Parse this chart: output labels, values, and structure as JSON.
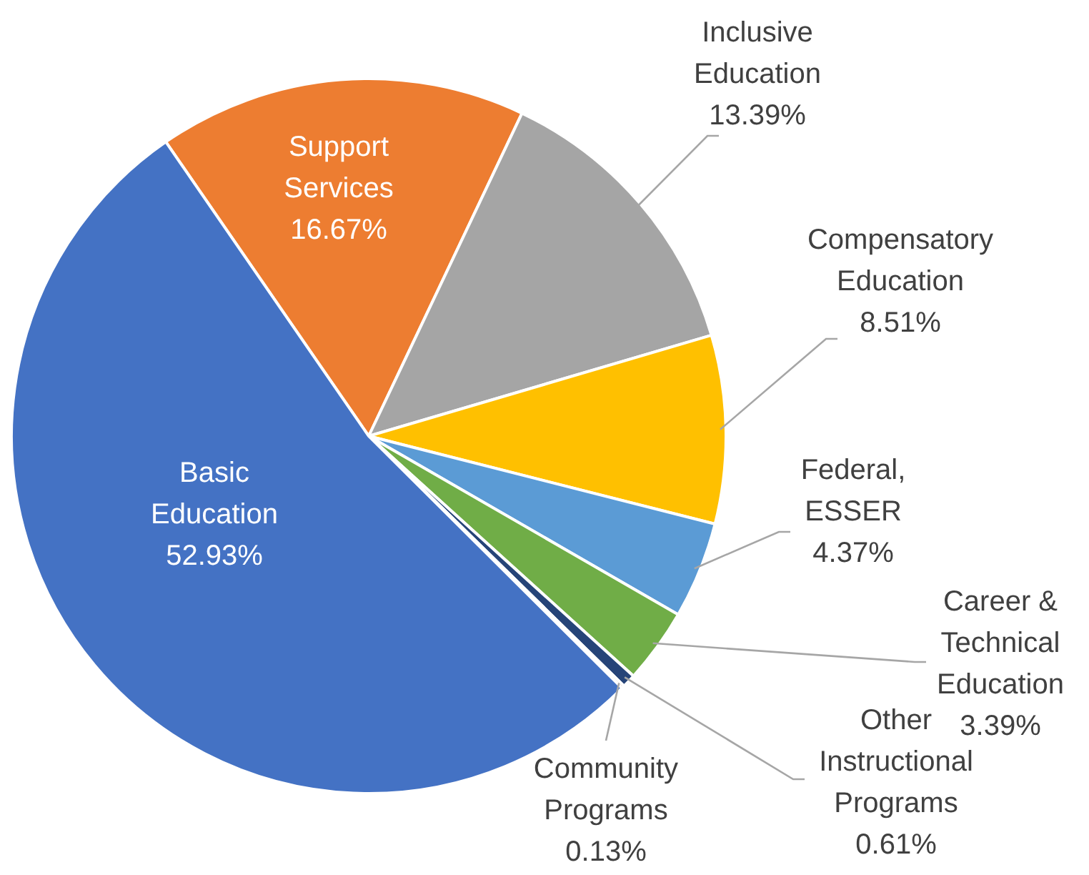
{
  "chart_data": {
    "type": "pie",
    "categories": [
      "Support Services",
      "Inclusive Education",
      "Compensatory Education",
      "Federal, ESSER",
      "Career & Technical Education",
      "Other Instructional Programs",
      "Community Programs",
      "Basic Education"
    ],
    "values": [
      16.67,
      13.39,
      8.51,
      4.37,
      3.39,
      0.61,
      0.13,
      52.93
    ],
    "colors": [
      "#ed7d31",
      "#a5a5a5",
      "#ffc000",
      "#5b9bd5",
      "#70ad47",
      "#264478",
      "#9e480e",
      "#4472c4"
    ],
    "value_labels": [
      "16.67%",
      "13.39%",
      "8.51%",
      "4.37%",
      "3.39%",
      "0.61%",
      "0.13%",
      "52.93%"
    ]
  }
}
